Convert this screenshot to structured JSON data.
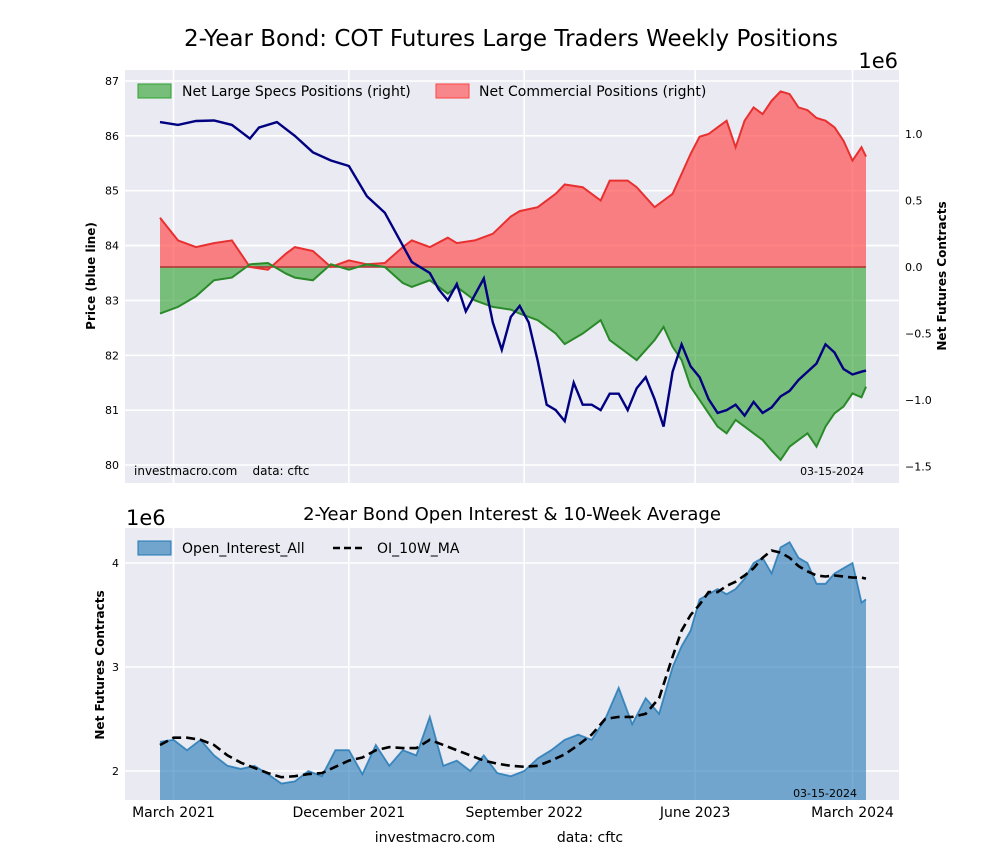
{
  "chart_data": [
    {
      "type": "line",
      "title": "2-Year Bond: COT Futures Large Traders Weekly Positions",
      "ylabel": "Price (blue line)",
      "ylabel_right": "Net Futures Contracts",
      "right_axis_multiplier": "1e6",
      "ylim": [
        80,
        87
      ],
      "ylim_right": [
        -1.5,
        1.5
      ],
      "yticks": [
        "80",
        "81",
        "82",
        "83",
        "84",
        "85",
        "86",
        "87"
      ],
      "yticks_right": [
        "1.0",
        "0.5",
        "0.0",
        "−0.5",
        "−1.0",
        "−1.5"
      ],
      "grid": true,
      "legend_position": "top-left",
      "legend": [
        {
          "label": "Net Large Specs Positions (right)",
          "color": "#2ca02c"
        },
        {
          "label": "Net Commercial Positions (right)",
          "color": "#ff4444"
        }
      ],
      "watermark_left": "investmacro.com    data: cftc",
      "date_label": "03-15-2024",
      "x_range_weeks": [
        0,
        157
      ],
      "series": [
        {
          "name": "Price",
          "color": "#000080",
          "x": [
            0,
            4,
            8,
            12,
            16,
            20,
            22,
            26,
            30,
            34,
            38,
            42,
            46,
            50,
            54,
            56,
            60,
            62,
            64,
            66,
            68,
            70,
            72,
            74,
            76,
            78,
            80,
            82,
            84,
            86,
            88,
            90,
            92,
            94,
            96,
            98,
            100,
            102,
            104,
            106,
            108,
            110,
            112,
            114,
            116,
            118,
            120,
            122,
            124,
            126,
            128,
            130,
            132,
            134,
            136,
            138,
            140,
            142,
            144,
            146,
            148,
            150,
            152,
            154,
            156,
            157
          ],
          "values": [
            86.25,
            86.2,
            86.27,
            86.28,
            86.2,
            85.95,
            86.15,
            86.25,
            86.0,
            85.7,
            85.55,
            85.45,
            84.9,
            84.6,
            84.0,
            83.7,
            83.5,
            83.2,
            83.0,
            83.3,
            82.8,
            83.1,
            83.4,
            82.6,
            82.1,
            82.7,
            82.9,
            82.6,
            81.9,
            81.1,
            81.0,
            80.8,
            81.5,
            81.1,
            81.1,
            81.0,
            81.3,
            81.3,
            81.0,
            81.4,
            81.6,
            81.2,
            80.7,
            81.7,
            82.2,
            81.8,
            81.6,
            81.2,
            80.95,
            81.0,
            81.1,
            80.9,
            81.15,
            80.95,
            81.05,
            81.25,
            81.35,
            81.55,
            81.7,
            81.85,
            82.2,
            82.05,
            81.75,
            81.65,
            81.7,
            81.72
          ]
        },
        {
          "name": "Net Large Specs Positions (right)",
          "color": "#2ca02c",
          "x": [
            0,
            4,
            8,
            12,
            16,
            20,
            24,
            28,
            30,
            34,
            38,
            42,
            46,
            50,
            54,
            56,
            60,
            64,
            66,
            70,
            74,
            78,
            80,
            84,
            88,
            90,
            94,
            98,
            100,
            104,
            106,
            110,
            112,
            114,
            116,
            118,
            120,
            122,
            124,
            126,
            128,
            130,
            132,
            134,
            136,
            138,
            140,
            142,
            144,
            146,
            148,
            150,
            152,
            154,
            156,
            157
          ],
          "values": [
            -0.35,
            -0.3,
            -0.22,
            -0.1,
            -0.08,
            0.02,
            0.03,
            -0.05,
            -0.08,
            -0.1,
            0.02,
            -0.02,
            0.02,
            0.0,
            -0.12,
            -0.15,
            -0.1,
            -0.2,
            -0.15,
            -0.25,
            -0.3,
            -0.32,
            -0.35,
            -0.4,
            -0.5,
            -0.58,
            -0.5,
            -0.4,
            -0.55,
            -0.65,
            -0.7,
            -0.55,
            -0.45,
            -0.6,
            -0.7,
            -0.9,
            -1.0,
            -1.1,
            -1.2,
            -1.25,
            -1.15,
            -1.2,
            -1.25,
            -1.3,
            -1.38,
            -1.45,
            -1.35,
            -1.3,
            -1.25,
            -1.35,
            -1.2,
            -1.1,
            -1.05,
            -0.95,
            -0.98,
            -0.9
          ]
        },
        {
          "name": "Net Commercial Positions (right)",
          "color": "#ff4444",
          "x": [
            0,
            4,
            8,
            12,
            16,
            20,
            24,
            28,
            30,
            34,
            38,
            42,
            46,
            50,
            54,
            56,
            60,
            64,
            66,
            70,
            74,
            78,
            80,
            84,
            88,
            90,
            94,
            98,
            100,
            104,
            106,
            110,
            112,
            114,
            116,
            118,
            120,
            122,
            124,
            126,
            128,
            130,
            132,
            134,
            136,
            138,
            140,
            142,
            144,
            146,
            148,
            150,
            152,
            154,
            156,
            157
          ],
          "values": [
            0.37,
            0.2,
            0.15,
            0.18,
            0.2,
            0.0,
            -0.02,
            0.1,
            0.15,
            0.12,
            0.0,
            0.05,
            0.02,
            0.03,
            0.15,
            0.2,
            0.15,
            0.22,
            0.18,
            0.2,
            0.25,
            0.38,
            0.42,
            0.45,
            0.55,
            0.62,
            0.6,
            0.5,
            0.65,
            0.65,
            0.6,
            0.45,
            0.5,
            0.55,
            0.7,
            0.85,
            0.98,
            1.0,
            1.05,
            1.1,
            0.9,
            1.1,
            1.2,
            1.15,
            1.25,
            1.32,
            1.3,
            1.2,
            1.18,
            1.12,
            1.1,
            1.05,
            0.95,
            0.8,
            0.9,
            0.83
          ]
        }
      ]
    },
    {
      "type": "area",
      "title": "2-Year Bond Open Interest & 10-Week Average",
      "ylabel": "Net Futures Contracts",
      "axis_multiplier": "1e6",
      "ylim": [
        1.75,
        4.3
      ],
      "yticks": [
        "2",
        "3",
        "4"
      ],
      "xticks": [
        "March 2021",
        "December 2021",
        "September 2022",
        "June 2023",
        "March 2024"
      ],
      "grid": true,
      "legend_position": "top-left",
      "legend": [
        {
          "label": "Open_Interest_All",
          "color": "#1f77b4"
        },
        {
          "label": "OI_10W_MA",
          "color": "#000000"
        }
      ],
      "date_label": "03-15-2024",
      "footer_left": "investmacro.com",
      "footer_right": "data: cftc",
      "x_range_weeks": [
        0,
        157
      ],
      "series": [
        {
          "name": "Open_Interest_All",
          "color": "#1f77b4",
          "x": [
            0,
            3,
            6,
            9,
            12,
            15,
            18,
            21,
            24,
            27,
            30,
            33,
            36,
            39,
            42,
            45,
            48,
            51,
            54,
            57,
            60,
            63,
            66,
            69,
            72,
            75,
            78,
            81,
            84,
            87,
            90,
            93,
            96,
            99,
            102,
            105,
            108,
            111,
            114,
            116,
            118,
            120,
            122,
            124,
            126,
            128,
            130,
            132,
            134,
            136,
            138,
            140,
            142,
            144,
            146,
            148,
            150,
            152,
            154,
            156,
            157
          ],
          "values": [
            2.28,
            2.3,
            2.2,
            2.3,
            2.15,
            2.05,
            2.02,
            2.05,
            1.97,
            1.88,
            1.9,
            2.0,
            1.95,
            2.2,
            2.2,
            1.97,
            2.25,
            2.05,
            2.2,
            2.15,
            2.52,
            2.05,
            2.1,
            2.0,
            2.15,
            1.98,
            1.95,
            2.0,
            2.12,
            2.2,
            2.3,
            2.35,
            2.3,
            2.5,
            2.8,
            2.45,
            2.7,
            2.55,
            3.0,
            3.2,
            3.35,
            3.65,
            3.7,
            3.75,
            3.7,
            3.75,
            3.85,
            4.0,
            4.05,
            3.9,
            4.15,
            4.2,
            4.05,
            4.0,
            3.8,
            3.8,
            3.9,
            3.95,
            4.0,
            3.62,
            3.65
          ]
        },
        {
          "name": "OI_10W_MA",
          "color": "#000000",
          "x": [
            0,
            3,
            6,
            9,
            12,
            15,
            18,
            21,
            24,
            27,
            30,
            33,
            36,
            39,
            42,
            45,
            48,
            51,
            54,
            57,
            60,
            63,
            66,
            69,
            72,
            75,
            78,
            81,
            84,
            87,
            90,
            93,
            96,
            99,
            102,
            105,
            108,
            111,
            114,
            116,
            118,
            120,
            122,
            124,
            126,
            128,
            130,
            132,
            134,
            136,
            138,
            140,
            142,
            144,
            146,
            148,
            150,
            152,
            154,
            156,
            157
          ],
          "values": [
            2.25,
            2.32,
            2.32,
            2.3,
            2.25,
            2.15,
            2.08,
            2.03,
            1.98,
            1.94,
            1.95,
            1.97,
            1.98,
            2.04,
            2.1,
            2.13,
            2.2,
            2.23,
            2.22,
            2.22,
            2.3,
            2.25,
            2.2,
            2.15,
            2.1,
            2.07,
            2.05,
            2.04,
            2.05,
            2.1,
            2.16,
            2.25,
            2.35,
            2.5,
            2.52,
            2.52,
            2.55,
            2.7,
            3.1,
            3.35,
            3.5,
            3.6,
            3.72,
            3.72,
            3.78,
            3.82,
            3.88,
            3.95,
            4.05,
            4.12,
            4.1,
            4.05,
            3.97,
            3.92,
            3.88,
            3.87,
            3.88,
            3.87,
            3.86,
            3.86,
            3.85
          ]
        }
      ]
    }
  ]
}
